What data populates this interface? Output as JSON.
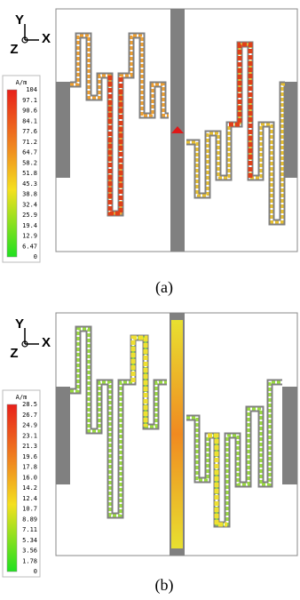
{
  "panels": [
    {
      "axes": {
        "y": "Y",
        "x": "X",
        "z": "Z"
      },
      "legend": {
        "unit": "A/m",
        "labels": [
          "104",
          "97.1",
          "90.6",
          "84.1",
          "77.6",
          "71.2",
          "64.7",
          "58.2",
          "51.8",
          "45.3",
          "38.8",
          "32.4",
          "25.9",
          "19.4",
          "12.9",
          "6.47",
          "0"
        ]
      },
      "caption": "(a)"
    },
    {
      "axes": {
        "y": "Y",
        "x": "X",
        "z": "Z"
      },
      "legend": {
        "unit": "A/m",
        "labels": [
          "28.5",
          "26.7",
          "24.9",
          "23.1",
          "21.3",
          "19.6",
          "17.8",
          "16.0",
          "14.2",
          "12.4",
          "10.7",
          "8.89",
          "7.11",
          "5.34",
          "3.56",
          "1.78",
          "0"
        ]
      },
      "caption": "(b)"
    }
  ]
}
